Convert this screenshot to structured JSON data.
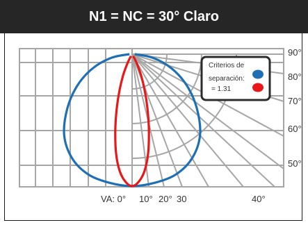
{
  "header": {
    "title": "N1 = NC = 30° Claro"
  },
  "chart_data": {
    "type": "line",
    "title": "N1 = NC = 30° Claro",
    "coordinate_system": "polar (luminaire intensity distribution)",
    "angle_labels_right": [
      "90°",
      "80°",
      "70°",
      "60°",
      "50°"
    ],
    "angle_labels_bottom": [
      "VA: 0°",
      "10°",
      "20°",
      "30",
      "40°"
    ],
    "legend": {
      "title_lines": [
        "Criterios de",
        "separación:",
        "= 1.31"
      ],
      "marker_colors": [
        "#1f6fb5",
        "#e81818"
      ]
    },
    "series": [
      {
        "color": "#1f6fb5",
        "shape": "wide distribution",
        "points_deg_rel": [
          [
            0,
            1.0
          ],
          [
            10,
            0.99
          ],
          [
            20,
            0.97
          ],
          [
            30,
            0.91
          ],
          [
            40,
            0.8
          ],
          [
            50,
            0.64
          ],
          [
            60,
            0.48
          ],
          [
            70,
            0.32
          ],
          [
            80,
            0.16
          ],
          [
            90,
            0.02
          ]
        ]
      },
      {
        "color": "#e81818",
        "shape": "narrow distribution",
        "points_deg_rel": [
          [
            0,
            1.0
          ],
          [
            5,
            0.97
          ],
          [
            10,
            0.9
          ],
          [
            15,
            0.78
          ],
          [
            20,
            0.62
          ],
          [
            25,
            0.46
          ],
          [
            30,
            0.32
          ],
          [
            35,
            0.2
          ],
          [
            40,
            0.1
          ],
          [
            45,
            0.02
          ]
        ]
      }
    ],
    "grid": true,
    "grid_color": "#a6a6a6"
  }
}
